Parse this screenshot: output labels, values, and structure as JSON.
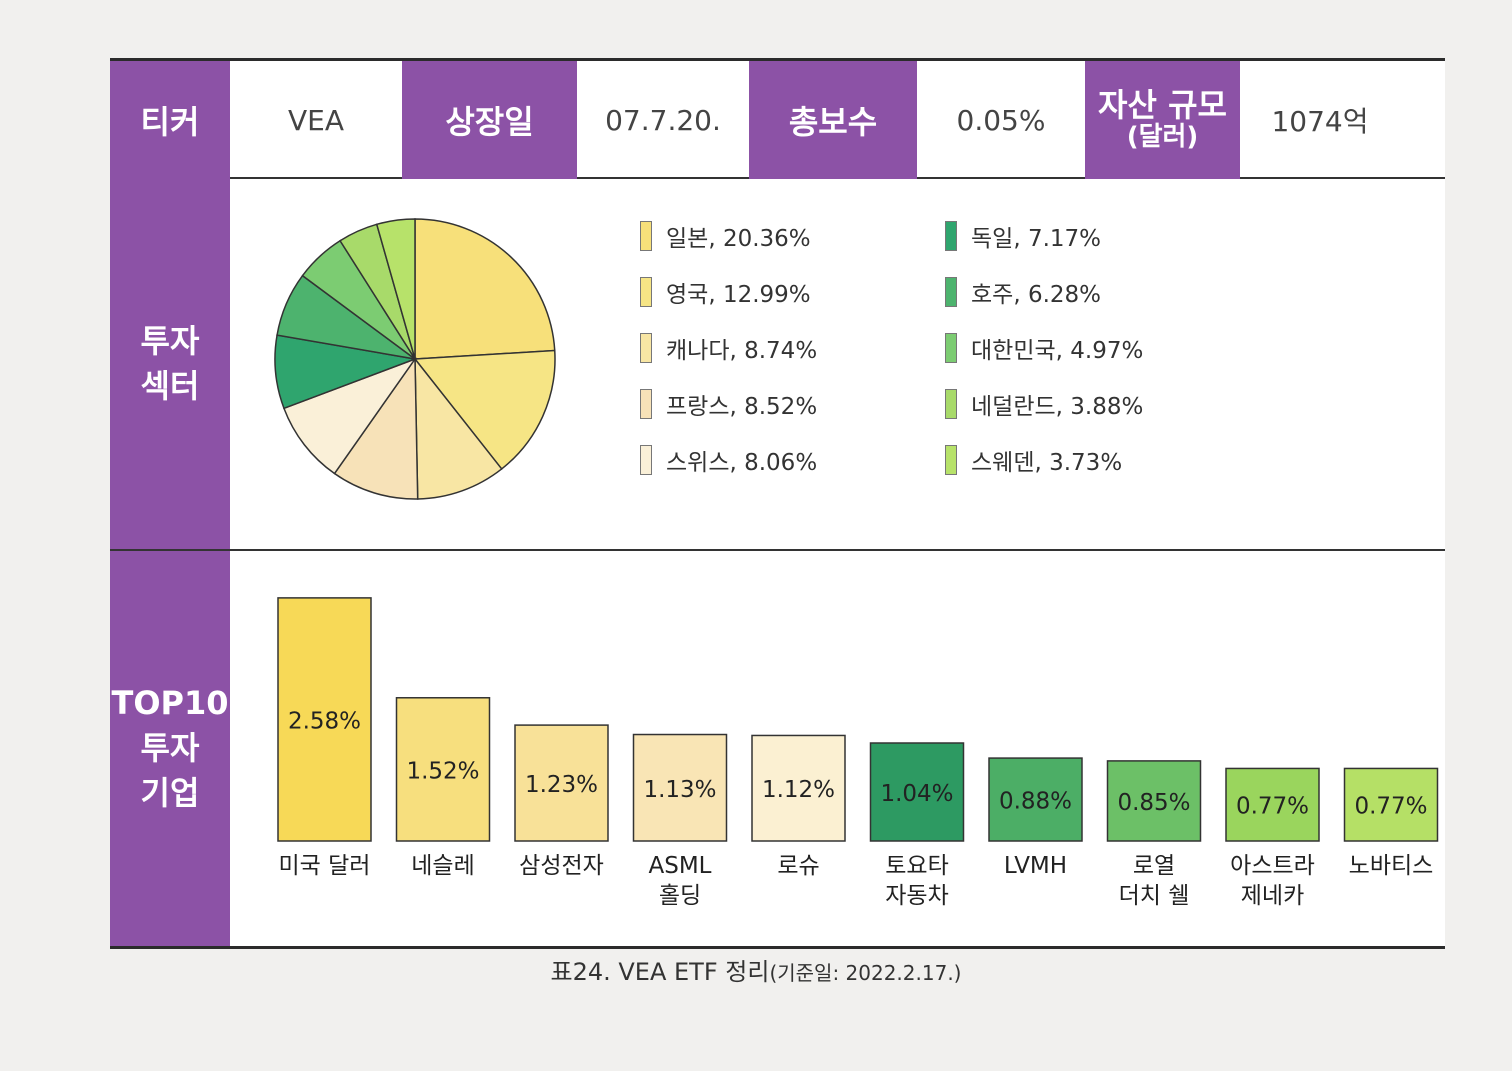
{
  "info": {
    "ticker_label": "티커",
    "ticker_value": "VEA",
    "listing_label": "상장일",
    "listing_value": "07.7.20.",
    "fee_label": "총보수",
    "fee_value": "0.05%",
    "aum_label_line1": "자산 규모",
    "aum_label_line2": "(달러)",
    "aum_value": "1074억"
  },
  "sector": {
    "label_line1": "투자",
    "label_line2": "섹터",
    "items": [
      {
        "name": "일본",
        "pct": 20.36,
        "text": "일본, 20.36%",
        "color": "#f7e07a"
      },
      {
        "name": "영국",
        "pct": 12.99,
        "text": "영국, 12.99%",
        "color": "#f6e585"
      },
      {
        "name": "캐나다",
        "pct": 8.74,
        "text": "캐나다, 8.74%",
        "color": "#f8e6a4"
      },
      {
        "name": "프랑스",
        "pct": 8.52,
        "text": "프랑스, 8.52%",
        "color": "#f7e2b8"
      },
      {
        "name": "스위스",
        "pct": 8.06,
        "text": "스위스, 8.06%",
        "color": "#faf0d8"
      },
      {
        "name": "독일",
        "pct": 7.17,
        "text": "독일, 7.17%",
        "color": "#2fa56e"
      },
      {
        "name": "호주",
        "pct": 6.28,
        "text": "호주, 6.28%",
        "color": "#4db36e"
      },
      {
        "name": "대한민국",
        "pct": 4.97,
        "text": "대한민국, 4.97%",
        "color": "#7ccc72"
      },
      {
        "name": "네덜란드",
        "pct": 3.88,
        "text": "네덜란드, 3.88%",
        "color": "#a8da6a"
      },
      {
        "name": "스웨덴",
        "pct": 3.73,
        "text": "스웨덴, 3.73%",
        "color": "#b7e26a"
      }
    ]
  },
  "top10": {
    "label_line1": "TOP10",
    "label_line2": "투자",
    "label_line3": "기업"
  },
  "chart_data": {
    "type": "bar",
    "categories": [
      "미국 달러",
      "네슬레",
      "삼성전자",
      "ASML 홀딩",
      "로슈",
      "토요타 자동차",
      "LVMH",
      "로열 더치 쉘",
      "아스트라 제네카",
      "노바티스"
    ],
    "category_lines": [
      [
        "미국 달러"
      ],
      [
        "네슬레"
      ],
      [
        "삼성전자"
      ],
      [
        "ASML",
        "홀딩"
      ],
      [
        "로슈"
      ],
      [
        "토요타",
        "자동차"
      ],
      [
        "LVMH"
      ],
      [
        "로열",
        "더치 쉘"
      ],
      [
        "아스트라",
        "제네카"
      ],
      [
        "노바티스"
      ]
    ],
    "values": [
      2.58,
      1.52,
      1.23,
      1.13,
      1.12,
      1.04,
      0.88,
      0.85,
      0.77,
      0.77
    ],
    "value_labels": [
      "2.58%",
      "1.52%",
      "1.23%",
      "1.13%",
      "1.12%",
      "1.04%",
      "0.88%",
      "0.85%",
      "0.77%",
      "0.77%"
    ],
    "colors": [
      "#f7d957",
      "#f7df7e",
      "#f8e198",
      "#f9e5b5",
      "#fbf0d2",
      "#2d9a62",
      "#4cae66",
      "#6cc067",
      "#9ad55d",
      "#b5e066"
    ],
    "ylim": [
      0,
      2.6
    ]
  },
  "caption": {
    "main": "표24. VEA ETF 정리",
    "sub": "(기준일: 2022.2.17.)"
  }
}
